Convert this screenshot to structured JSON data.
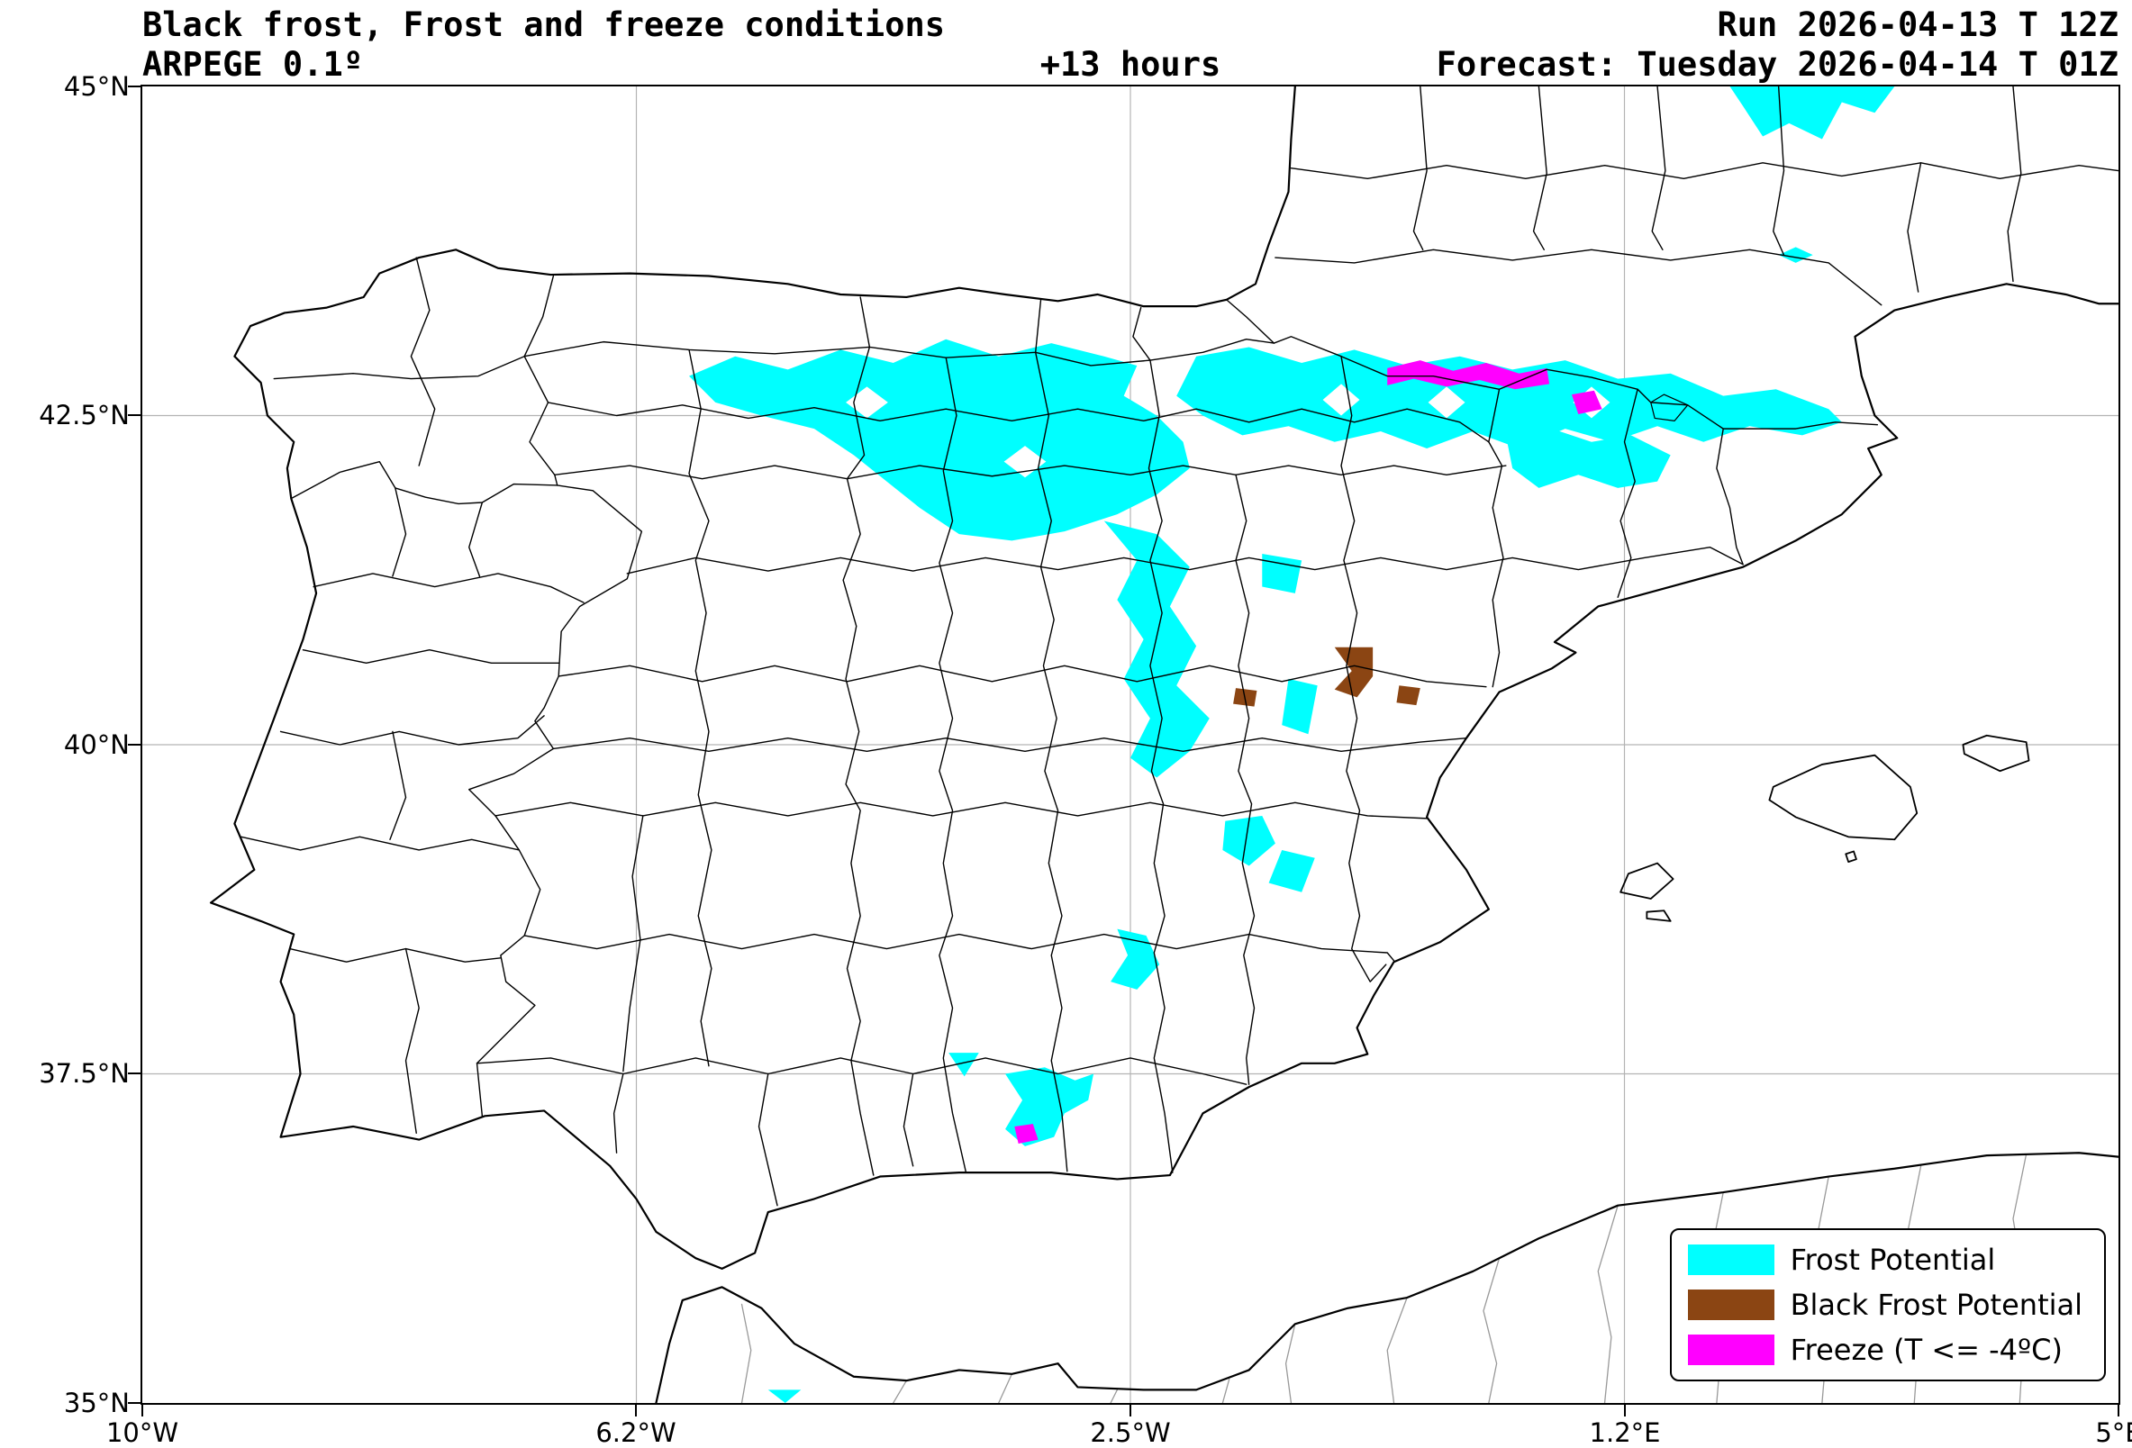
{
  "header": {
    "title": "Black frost, Frost and freeze conditions",
    "model": "ARPEGE 0.1º",
    "lead_time": "+13 hours",
    "run": "Run 2026-04-13 T 12Z",
    "forecast": "Forecast: Tuesday 2026-04-14 T 01Z"
  },
  "axes": {
    "lon_range": [
      -10,
      5
    ],
    "lat_range": [
      35,
      45
    ],
    "x_ticks": [
      {
        "label": "10°W",
        "lon": -10
      },
      {
        "label": "6.2°W",
        "lon": -6.25
      },
      {
        "label": "2.5°W",
        "lon": -2.5
      },
      {
        "label": "1.2°E",
        "lon": 1.25
      },
      {
        "label": "5°E",
        "lon": 5
      }
    ],
    "y_ticks": [
      {
        "label": "45°N",
        "lat": 45
      },
      {
        "label": "42.5°N",
        "lat": 42.5
      },
      {
        "label": "40°N",
        "lat": 40
      },
      {
        "label": "37.5°N",
        "lat": 37.5
      },
      {
        "label": "35°N",
        "lat": 35
      }
    ],
    "grid_color": "#b3b3b3"
  },
  "legend": {
    "items": [
      {
        "key": "frost",
        "label": "Frost Potential",
        "color": "#00FFFF"
      },
      {
        "key": "black_frost",
        "label": "Black Frost Potential",
        "color": "#8B4513"
      },
      {
        "key": "freeze",
        "label": "Freeze (T <= -4ºC)",
        "color": "#FF00FF"
      }
    ]
  },
  "map_overlays": {
    "frost": [
      [
        [
          -5.85,
          42.8
        ],
        [
          -5.5,
          42.95
        ],
        [
          -5.1,
          42.85
        ],
        [
          -4.7,
          43.0
        ],
        [
          -4.3,
          42.9
        ],
        [
          -3.9,
          43.08
        ],
        [
          -3.5,
          42.95
        ],
        [
          -3.1,
          43.05
        ],
        [
          -2.7,
          42.95
        ],
        [
          -2.45,
          42.88
        ],
        [
          -2.55,
          42.65
        ],
        [
          -2.3,
          42.5
        ],
        [
          -2.1,
          42.3
        ],
        [
          -2.05,
          42.1
        ],
        [
          -2.3,
          41.9
        ],
        [
          -2.6,
          41.75
        ],
        [
          -3.0,
          41.62
        ],
        [
          -3.4,
          41.55
        ],
        [
          -3.8,
          41.6
        ],
        [
          -4.1,
          41.8
        ],
        [
          -4.35,
          42.0
        ],
        [
          -4.6,
          42.2
        ],
        [
          -4.9,
          42.4
        ],
        [
          -5.3,
          42.5
        ],
        [
          -5.65,
          42.6
        ]
      ],
      [
        [
          -2.0,
          42.95
        ],
        [
          -1.6,
          43.02
        ],
        [
          -1.2,
          42.9
        ],
        [
          -0.8,
          43.0
        ],
        [
          -0.4,
          42.88
        ],
        [
          0.0,
          42.95
        ],
        [
          0.4,
          42.85
        ],
        [
          0.8,
          42.92
        ],
        [
          1.2,
          42.78
        ],
        [
          1.6,
          42.82
        ],
        [
          2.0,
          42.65
        ],
        [
          2.4,
          42.7
        ],
        [
          2.8,
          42.55
        ],
        [
          2.9,
          42.45
        ],
        [
          2.6,
          42.35
        ],
        [
          2.2,
          42.42
        ],
        [
          1.85,
          42.3
        ],
        [
          1.5,
          42.42
        ],
        [
          1.15,
          42.3
        ],
        [
          0.8,
          42.4
        ],
        [
          0.45,
          42.25
        ],
        [
          0.1,
          42.38
        ],
        [
          -0.25,
          42.25
        ],
        [
          -0.6,
          42.38
        ],
        [
          -0.95,
          42.3
        ],
        [
          -1.3,
          42.42
        ],
        [
          -1.65,
          42.35
        ],
        [
          -1.95,
          42.5
        ],
        [
          -2.15,
          42.65
        ]
      ],
      [
        [
          -2.7,
          41.7
        ],
        [
          -2.3,
          41.6
        ],
        [
          -2.05,
          41.35
        ],
        [
          -2.2,
          41.05
        ],
        [
          -2.0,
          40.75
        ],
        [
          -2.15,
          40.45
        ],
        [
          -1.9,
          40.2
        ],
        [
          -2.05,
          39.95
        ],
        [
          -2.3,
          39.75
        ],
        [
          -2.5,
          39.9
        ],
        [
          -2.35,
          40.2
        ],
        [
          -2.55,
          40.5
        ],
        [
          -2.4,
          40.8
        ],
        [
          -2.6,
          41.1
        ],
        [
          -2.45,
          41.4
        ]
      ],
      [
        [
          0.35,
          42.35
        ],
        [
          0.7,
          42.4
        ],
        [
          1.0,
          42.3
        ],
        [
          1.3,
          42.35
        ],
        [
          1.6,
          42.2
        ],
        [
          1.5,
          42.0
        ],
        [
          1.2,
          41.95
        ],
        [
          0.9,
          42.05
        ],
        [
          0.6,
          41.95
        ],
        [
          0.4,
          42.1
        ]
      ],
      [
        [
          -1.5,
          41.45
        ],
        [
          -1.2,
          41.4
        ],
        [
          -1.25,
          41.15
        ],
        [
          -1.5,
          41.2
        ]
      ],
      [
        [
          -1.3,
          40.5
        ],
        [
          -1.08,
          40.45
        ],
        [
          -1.15,
          40.08
        ],
        [
          -1.35,
          40.15
        ]
      ],
      [
        [
          -1.78,
          39.42
        ],
        [
          -1.5,
          39.46
        ],
        [
          -1.4,
          39.25
        ],
        [
          -1.6,
          39.08
        ],
        [
          -1.8,
          39.2
        ]
      ],
      [
        [
          -1.35,
          39.2
        ],
        [
          -1.1,
          39.14
        ],
        [
          -1.2,
          38.88
        ],
        [
          -1.45,
          38.95
        ]
      ],
      [
        [
          -2.6,
          38.6
        ],
        [
          -2.38,
          38.55
        ],
        [
          -2.28,
          38.33
        ],
        [
          -2.45,
          38.14
        ],
        [
          -2.65,
          38.2
        ],
        [
          -2.52,
          38.4
        ]
      ],
      [
        [
          -3.45,
          37.5
        ],
        [
          -3.15,
          37.55
        ],
        [
          -2.92,
          37.45
        ],
        [
          -2.78,
          37.5
        ],
        [
          -2.82,
          37.3
        ],
        [
          -3.0,
          37.2
        ],
        [
          -3.08,
          37.02
        ],
        [
          -3.3,
          36.95
        ],
        [
          -3.45,
          37.08
        ],
        [
          -3.32,
          37.3
        ]
      ],
      [
        [
          -3.88,
          37.66
        ],
        [
          -3.65,
          37.66
        ],
        [
          -3.76,
          37.48
        ]
      ],
      [
        [
          2.05,
          45.0
        ],
        [
          3.3,
          45.0
        ],
        [
          3.15,
          44.8
        ],
        [
          2.9,
          44.88
        ],
        [
          2.75,
          44.6
        ],
        [
          2.5,
          44.72
        ],
        [
          2.3,
          44.62
        ],
        [
          2.15,
          44.85
        ]
      ],
      [
        [
          2.55,
          43.78
        ],
        [
          2.68,
          43.72
        ],
        [
          2.55,
          43.66
        ],
        [
          2.42,
          43.72
        ]
      ],
      [
        [
          -5.25,
          35.1
        ],
        [
          -5.0,
          35.1
        ],
        [
          -5.12,
          35.0
        ]
      ]
    ],
    "holes": [
      [
        [
          -1.04,
          42.62
        ],
        [
          -0.9,
          42.74
        ],
        [
          -0.76,
          42.62
        ],
        [
          -0.9,
          42.5
        ]
      ],
      [
        [
          -0.24,
          42.6
        ],
        [
          -0.1,
          42.72
        ],
        [
          0.04,
          42.6
        ],
        [
          -0.1,
          42.48
        ]
      ],
      [
        [
          0.86,
          42.6
        ],
        [
          1.0,
          42.72
        ],
        [
          1.14,
          42.6
        ],
        [
          1.0,
          42.48
        ]
      ],
      [
        [
          -4.66,
          42.6
        ],
        [
          -4.5,
          42.72
        ],
        [
          -4.34,
          42.6
        ],
        [
          -4.5,
          42.48
        ]
      ],
      [
        [
          -3.46,
          42.15
        ],
        [
          -3.3,
          42.27
        ],
        [
          -3.14,
          42.15
        ],
        [
          -3.3,
          42.03
        ]
      ]
    ],
    "black_frost": [
      [
        [
          -0.95,
          40.74
        ],
        [
          -0.66,
          40.74
        ],
        [
          -0.66,
          40.52
        ],
        [
          -0.78,
          40.36
        ],
        [
          -0.95,
          40.42
        ],
        [
          -0.82,
          40.56
        ]
      ],
      [
        [
          -0.46,
          40.45
        ],
        [
          -0.3,
          40.43
        ],
        [
          -0.33,
          40.3
        ],
        [
          -0.48,
          40.32
        ]
      ],
      [
        [
          -1.7,
          40.43
        ],
        [
          -1.54,
          40.41
        ],
        [
          -1.56,
          40.29
        ],
        [
          -1.72,
          40.31
        ]
      ]
    ],
    "freeze": [
      [
        [
          -0.55,
          42.86
        ],
        [
          -0.3,
          42.92
        ],
        [
          -0.05,
          42.84
        ],
        [
          0.2,
          42.9
        ],
        [
          0.45,
          42.82
        ],
        [
          0.66,
          42.86
        ],
        [
          0.68,
          42.74
        ],
        [
          0.42,
          42.7
        ],
        [
          0.15,
          42.77
        ],
        [
          -0.1,
          42.72
        ],
        [
          -0.35,
          42.78
        ],
        [
          -0.55,
          42.73
        ]
      ],
      [
        [
          0.85,
          42.66
        ],
        [
          1.02,
          42.69
        ],
        [
          1.08,
          42.55
        ],
        [
          0.9,
          42.51
        ]
      ],
      [
        [
          -3.38,
          37.1
        ],
        [
          -3.24,
          37.12
        ],
        [
          -3.2,
          37.0
        ],
        [
          -3.35,
          36.97
        ]
      ]
    ]
  }
}
